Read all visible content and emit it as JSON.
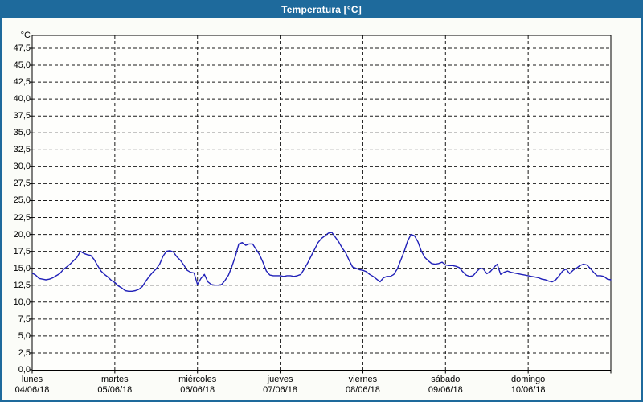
{
  "window": {
    "title": "Temperatura [°C]"
  },
  "colors": {
    "titlebar_bg": "#1E6A9C",
    "window_border": "#1E6A9C",
    "window_bg": "#FBFCF8",
    "plot_bg": "#FEFEFC",
    "frame": "#000000",
    "grid": "#1A1A1A",
    "series_line": "#2020B8",
    "label_text": "#000000"
  },
  "chart_data": {
    "type": "line",
    "title": "Temperatura [°C]",
    "y_axis": {
      "unit_label": "°C",
      "min": 0,
      "max": 49.4,
      "tick_step": 2.5,
      "tick_labels": [
        "0,0",
        "2,5",
        "5,0",
        "7,5",
        "10,0",
        "12,5",
        "15,0",
        "17,5",
        "20,0",
        "22,5",
        "25,0",
        "27,5",
        "30,0",
        "32,5",
        "35,0",
        "37,5",
        "40,0",
        "42,5",
        "45,0",
        "47,5"
      ],
      "grid": true,
      "decimal_separator": ","
    },
    "x_axis": {
      "grid": true,
      "points_per_day": 24,
      "days": [
        {
          "name": "lunes",
          "date": "04/06/18"
        },
        {
          "name": "martes",
          "date": "05/06/18"
        },
        {
          "name": "miércoles",
          "date": "06/06/18"
        },
        {
          "name": "jueves",
          "date": "07/06/18"
        },
        {
          "name": "viernes",
          "date": "08/06/18"
        },
        {
          "name": "sábado",
          "date": "09/06/18"
        },
        {
          "name": "domingo",
          "date": "10/06/18"
        }
      ]
    },
    "legend": "none",
    "series": [
      {
        "name": "Temperatura",
        "unit": "°C",
        "values": [
          14.3,
          14.0,
          13.5,
          13.4,
          13.3,
          13.4,
          13.6,
          13.9,
          14.2,
          14.8,
          15.2,
          15.6,
          16.1,
          16.6,
          17.5,
          17.2,
          17.0,
          16.9,
          16.3,
          15.4,
          14.6,
          14.1,
          13.7,
          13.2,
          12.9,
          12.4,
          12.1,
          11.7,
          11.6,
          11.6,
          11.7,
          11.9,
          12.3,
          13.1,
          13.8,
          14.4,
          14.9,
          15.6,
          16.8,
          17.5,
          17.6,
          17.4,
          16.7,
          16.2,
          15.5,
          14.7,
          14.4,
          14.3,
          12.6,
          13.5,
          14.1,
          13.0,
          12.6,
          12.5,
          12.5,
          12.6,
          13.2,
          14.0,
          15.3,
          16.8,
          18.6,
          18.8,
          18.4,
          18.6,
          18.6,
          17.8,
          17.0,
          15.9,
          14.6,
          14.0,
          13.9,
          13.9,
          13.9,
          13.8,
          13.9,
          13.9,
          13.8,
          13.9,
          14.1,
          14.9,
          15.8,
          16.8,
          17.8,
          18.8,
          19.4,
          19.8,
          20.2,
          20.3,
          19.6,
          18.9,
          18.0,
          17.3,
          16.2,
          15.2,
          15.0,
          14.8,
          14.7,
          14.5,
          14.1,
          13.8,
          13.4,
          13.0,
          13.6,
          13.8,
          13.8,
          14.1,
          14.9,
          16.2,
          17.5,
          19.0,
          20.0,
          19.8,
          18.9,
          17.5,
          16.6,
          16.1,
          15.7,
          15.6,
          15.7,
          15.9,
          15.5,
          15.4,
          15.4,
          15.3,
          15.1,
          14.5,
          14.0,
          13.8,
          13.9,
          14.5,
          15.0,
          14.9,
          14.2,
          14.5,
          15.1,
          15.6,
          14.1,
          14.4,
          14.6,
          14.4,
          14.3,
          14.2,
          14.1,
          14.0,
          13.9,
          13.8,
          13.7,
          13.6,
          13.4,
          13.3,
          13.1,
          13.0,
          13.3,
          13.9,
          14.6,
          14.9,
          14.2,
          14.7,
          15.0,
          15.4,
          15.6,
          15.5,
          15.0,
          14.4,
          13.9,
          13.9,
          13.8,
          13.4,
          13.3
        ]
      }
    ]
  }
}
